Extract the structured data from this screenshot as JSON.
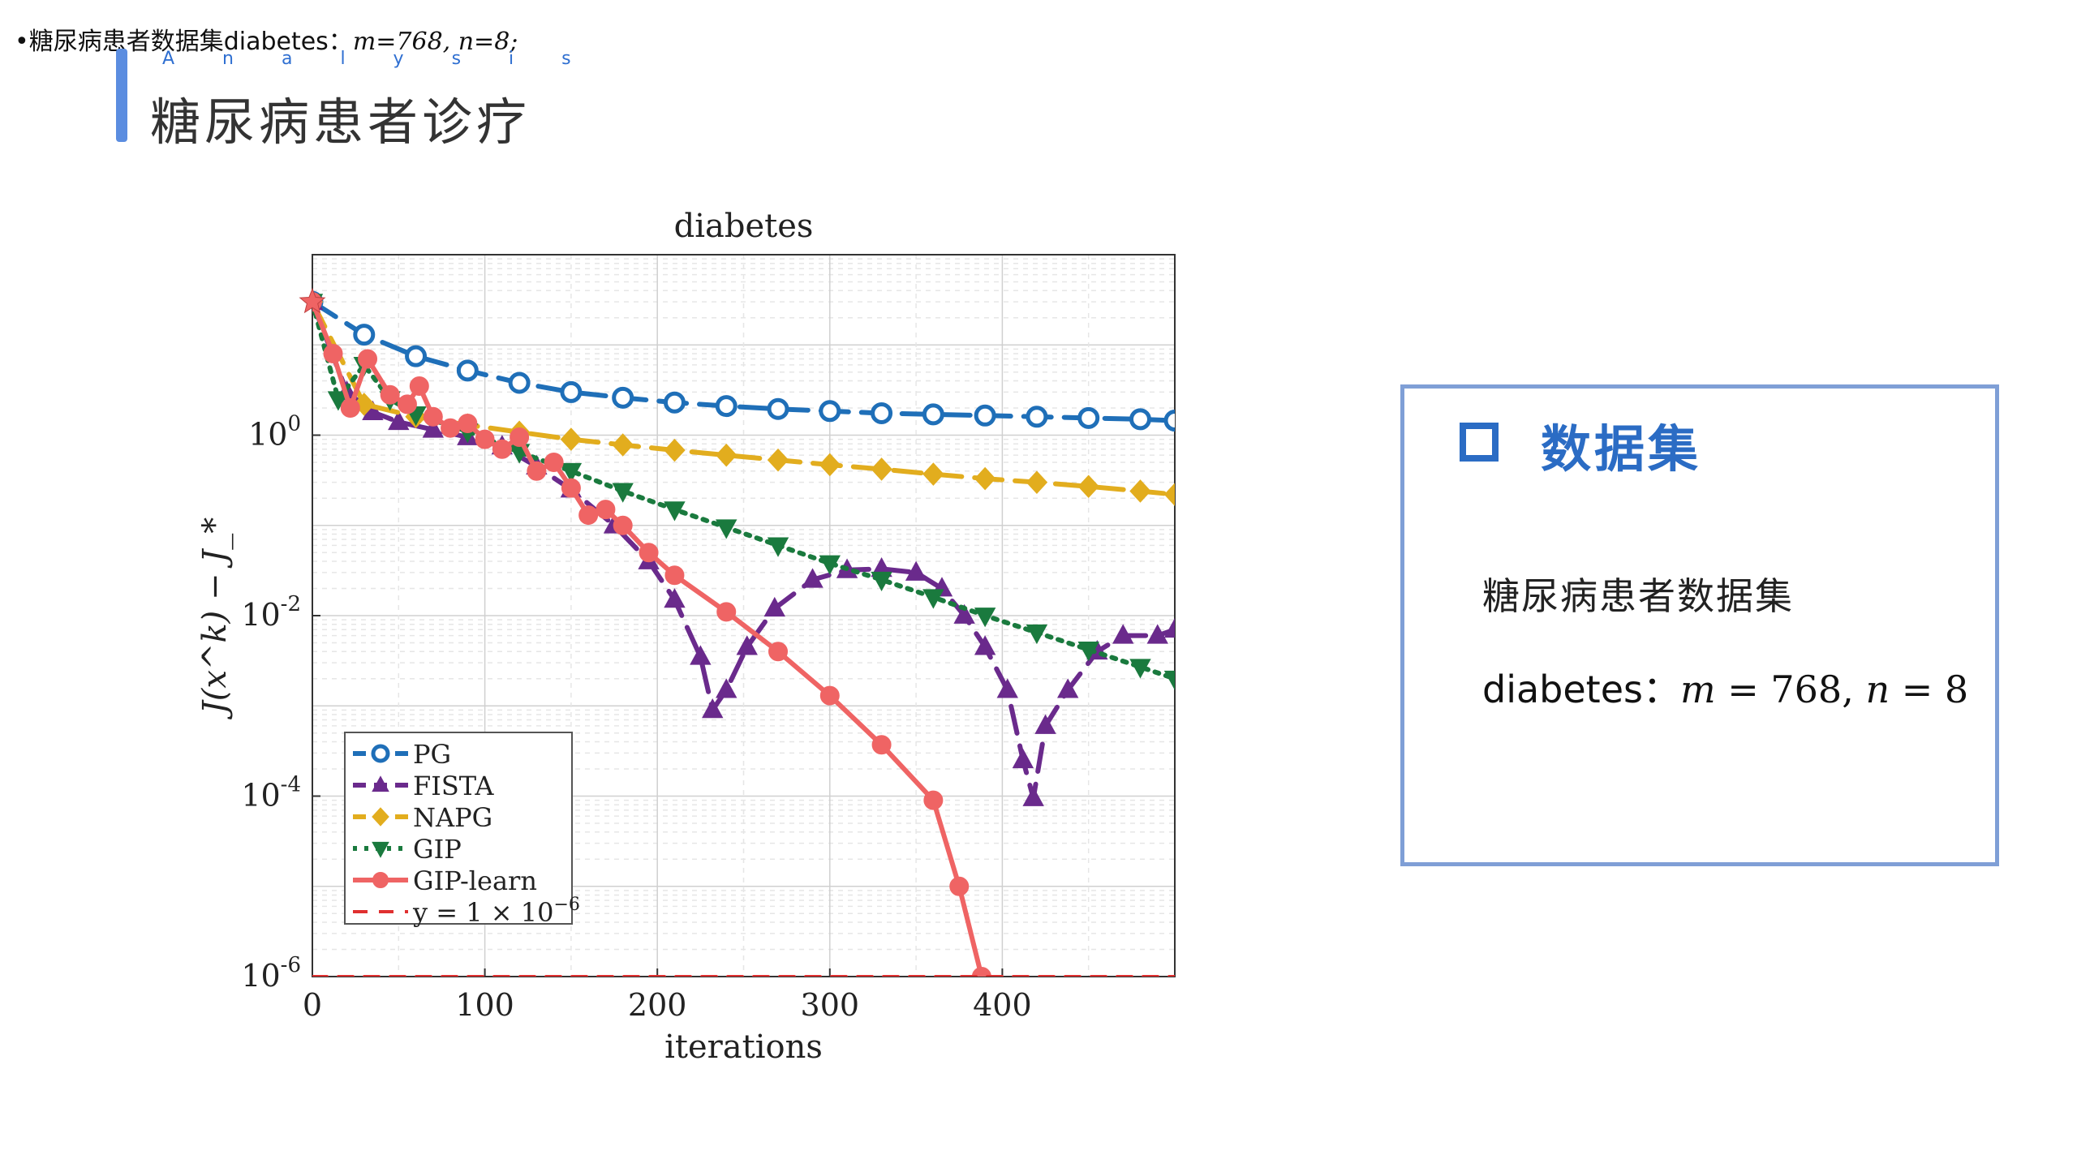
{
  "header": {
    "note_text": "•糖尿病患者数据集diabetes：",
    "note_formula": "m=768, n=8;",
    "analysis_label": "A n a l y s i s",
    "title": "糖尿病患者诊疗"
  },
  "info_box": {
    "title": "数据集",
    "line1": "糖尿病患者数据集",
    "line2_prefix": "diabetes：",
    "line2_m": "m",
    "line2_m_value": " = 768, ",
    "line2_n": "n",
    "line2_n_value": " = 8"
  },
  "colors": {
    "accent": "#5b8de0",
    "box_border": "#7f9fd6",
    "box_title": "#2b6cc4"
  },
  "chart_data": {
    "type": "line",
    "title": "diabetes",
    "xlabel": "iterations",
    "ylabel": "J(x^k) − J_*",
    "xlim": [
      0,
      500
    ],
    "ylim": [
      1e-06,
      100.0
    ],
    "yscale": "log",
    "x_ticks": [
      "0",
      "100",
      "200",
      "300",
      "400"
    ],
    "y_ticks": [
      {
        "base": "10",
        "exp": "0",
        "value": 1
      },
      {
        "base": "10",
        "exp": "-2",
        "value": 0.01
      },
      {
        "base": "10",
        "exp": "-4",
        "value": 0.0001
      },
      {
        "base": "10",
        "exp": "-6",
        "value": 1e-06
      }
    ],
    "grid": true,
    "legend_position": "bottom-left",
    "series": [
      {
        "name": "PG",
        "color": "#1f6fb8",
        "dash": "long-dash",
        "marker": "circle-open",
        "x": [
          0,
          30,
          60,
          90,
          120,
          150,
          180,
          210,
          240,
          270,
          300,
          330,
          360,
          390,
          420,
          450,
          480,
          500
        ],
        "y": [
          30,
          13,
          7.5,
          5.2,
          3.8,
          3.0,
          2.6,
          2.3,
          2.1,
          1.95,
          1.85,
          1.75,
          1.7,
          1.65,
          1.6,
          1.55,
          1.5,
          1.45
        ]
      },
      {
        "name": "FISTA",
        "color": "#6a2a8c",
        "dash": "long-dash",
        "marker": "triangle-up",
        "x": [
          0,
          20,
          35,
          50,
          70,
          90,
          110,
          130,
          150,
          175,
          195,
          210,
          225,
          232,
          240,
          252,
          268,
          290,
          310,
          330,
          350,
          365,
          378,
          390,
          403,
          412,
          418,
          425,
          438,
          455,
          470,
          490,
          500
        ],
        "y": [
          30,
          3.0,
          1.8,
          1.4,
          1.15,
          0.95,
          0.75,
          0.45,
          0.25,
          0.1,
          0.04,
          0.015,
          0.0035,
          0.0009,
          0.0015,
          0.0045,
          0.012,
          0.025,
          0.032,
          0.033,
          0.03,
          0.02,
          0.01,
          0.0045,
          0.0015,
          0.00025,
          9.5e-05,
          0.0006,
          0.0015,
          0.004,
          0.006,
          0.006,
          0.007
        ]
      },
      {
        "name": "NAPG",
        "color": "#e2ad1e",
        "dash": "long-dash",
        "marker": "diamond",
        "x": [
          0,
          30,
          60,
          90,
          120,
          150,
          180,
          210,
          240,
          270,
          300,
          330,
          360,
          390,
          420,
          450,
          480,
          500
        ],
        "y": [
          30,
          2.2,
          1.6,
          1.3,
          1.08,
          0.9,
          0.78,
          0.68,
          0.6,
          0.53,
          0.47,
          0.42,
          0.37,
          0.33,
          0.3,
          0.27,
          0.24,
          0.22
        ]
      },
      {
        "name": "GIP",
        "color": "#1a7a3e",
        "dash": "dotted",
        "marker": "triangle-down",
        "x": [
          0,
          15,
          30,
          45,
          60,
          90,
          120,
          150,
          180,
          210,
          240,
          270,
          300,
          330,
          360,
          390,
          420,
          450,
          480,
          500
        ],
        "y": [
          30,
          2.5,
          6.0,
          2.5,
          1.7,
          1.1,
          0.65,
          0.4,
          0.24,
          0.15,
          0.095,
          0.06,
          0.038,
          0.025,
          0.016,
          0.01,
          0.0065,
          0.0042,
          0.0027,
          0.002
        ]
      },
      {
        "name": "GIP-learn",
        "color": "#ef6464",
        "dash": "solid",
        "marker": "circle-filled",
        "x": [
          0,
          12,
          22,
          32,
          45,
          55,
          62,
          70,
          80,
          90,
          100,
          110,
          120,
          130,
          140,
          150,
          160,
          170,
          180,
          195,
          210,
          240,
          270,
          300,
          330,
          360,
          375,
          388
        ],
        "y": [
          30,
          8,
          2.0,
          7.0,
          2.8,
          2.2,
          3.5,
          1.6,
          1.2,
          1.35,
          0.9,
          0.7,
          0.95,
          0.4,
          0.5,
          0.26,
          0.13,
          0.15,
          0.1,
          0.05,
          0.028,
          0.011,
          0.004,
          0.0013,
          0.00037,
          9e-05,
          1e-05,
          1e-06
        ]
      },
      {
        "name": "y = 1 × 10^{−6}",
        "color": "#e03030",
        "dash": "dashed",
        "marker": "none",
        "x": [
          0,
          500
        ],
        "y": [
          1e-06,
          1e-06
        ]
      }
    ],
    "legend": [
      {
        "text": "PG"
      },
      {
        "text": "FISTA"
      },
      {
        "text": "NAPG"
      },
      {
        "text": "GIP"
      },
      {
        "text": "GIP-learn"
      },
      {
        "text": "y = 1 × 10",
        "exp": "−6"
      }
    ]
  }
}
